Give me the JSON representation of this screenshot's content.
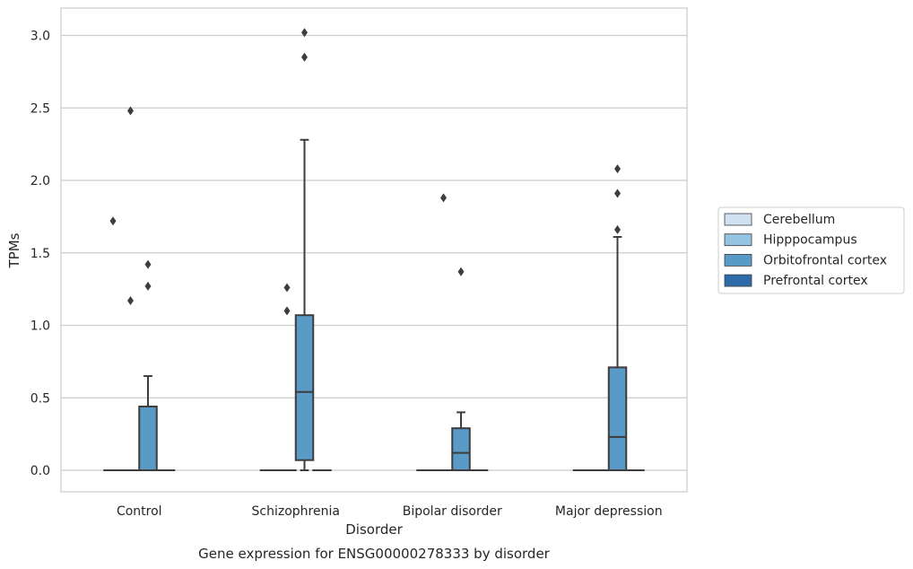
{
  "chart_data": {
    "type": "box",
    "title": "",
    "caption": "Gene expression for ENSG00000278333 by disorder",
    "xlabel": "Disorder",
    "ylabel": "TPMs",
    "ylim": [
      -0.15,
      3.18
    ],
    "yticks": [
      0.0,
      0.5,
      1.0,
      1.5,
      2.0,
      2.5,
      3.0
    ],
    "ytick_labels": [
      "0.0",
      "0.5",
      "1.0",
      "1.5",
      "2.0",
      "2.5",
      "3.0"
    ],
    "grid": "horizontal",
    "legend_position": "right",
    "categories": [
      "Control",
      "Schizophrenia",
      "Bipolar disorder",
      "Major depression"
    ],
    "series": [
      {
        "name": "Cerebellum",
        "color": "#d0e1f2",
        "boxes": [
          {
            "q1": 0,
            "median": 0,
            "q3": 0,
            "whisker_low": 0,
            "whisker_high": 0,
            "outliers": [
              1.72
            ]
          },
          {
            "q1": 0,
            "median": 0,
            "q3": 0,
            "whisker_low": 0,
            "whisker_high": 0,
            "outliers": []
          },
          {
            "q1": 0,
            "median": 0,
            "q3": 0,
            "whisker_low": 0,
            "whisker_high": 0,
            "outliers": []
          },
          {
            "q1": 0,
            "median": 0,
            "q3": 0,
            "whisker_low": 0,
            "whisker_high": 0,
            "outliers": []
          }
        ]
      },
      {
        "name": "Hipppocampus",
        "color": "#94c4df",
        "boxes": [
          {
            "q1": 0,
            "median": 0,
            "q3": 0,
            "whisker_low": 0,
            "whisker_high": 0,
            "outliers": [
              2.48,
              1.17
            ]
          },
          {
            "q1": 0,
            "median": 0,
            "q3": 0,
            "whisker_low": 0,
            "whisker_high": 0,
            "outliers": [
              1.26,
              1.1
            ]
          },
          {
            "q1": 0,
            "median": 0,
            "q3": 0,
            "whisker_low": 0,
            "whisker_high": 0,
            "outliers": [
              1.88
            ]
          },
          {
            "q1": 0,
            "median": 0,
            "q3": 0,
            "whisker_low": 0,
            "whisker_high": 0,
            "outliers": []
          }
        ]
      },
      {
        "name": "Orbitofrontal cortex",
        "color": "#5a9ac6",
        "boxes": [
          {
            "q1": 0,
            "median": 0,
            "q3": 0.44,
            "whisker_low": 0,
            "whisker_high": 0.65,
            "outliers": [
              1.42,
              1.27
            ]
          },
          {
            "q1": 0.07,
            "median": 0.54,
            "q3": 1.07,
            "whisker_low": 0,
            "whisker_high": 2.28,
            "outliers": [
              3.02,
              2.85
            ]
          },
          {
            "q1": 0,
            "median": 0.12,
            "q3": 0.29,
            "whisker_low": 0,
            "whisker_high": 0.4,
            "outliers": [
              1.37
            ]
          },
          {
            "q1": 0,
            "median": 0.23,
            "q3": 0.71,
            "whisker_low": 0,
            "whisker_high": 1.61,
            "outliers": [
              1.91,
              2.08,
              1.66
            ]
          }
        ]
      },
      {
        "name": "Prefrontal cortex",
        "color": "#2d6ca8",
        "boxes": [
          {
            "q1": 0,
            "median": 0,
            "q3": 0,
            "whisker_low": 0,
            "whisker_high": 0,
            "outliers": []
          },
          {
            "q1": 0,
            "median": 0,
            "q3": 0,
            "whisker_low": 0,
            "whisker_high": 0,
            "outliers": []
          },
          {
            "q1": 0,
            "median": 0,
            "q3": 0,
            "whisker_low": 0,
            "whisker_high": 0,
            "outliers": []
          },
          {
            "q1": 0,
            "median": 0,
            "q3": 0,
            "whisker_low": 0,
            "whisker_high": 0,
            "outliers": []
          }
        ]
      }
    ]
  }
}
